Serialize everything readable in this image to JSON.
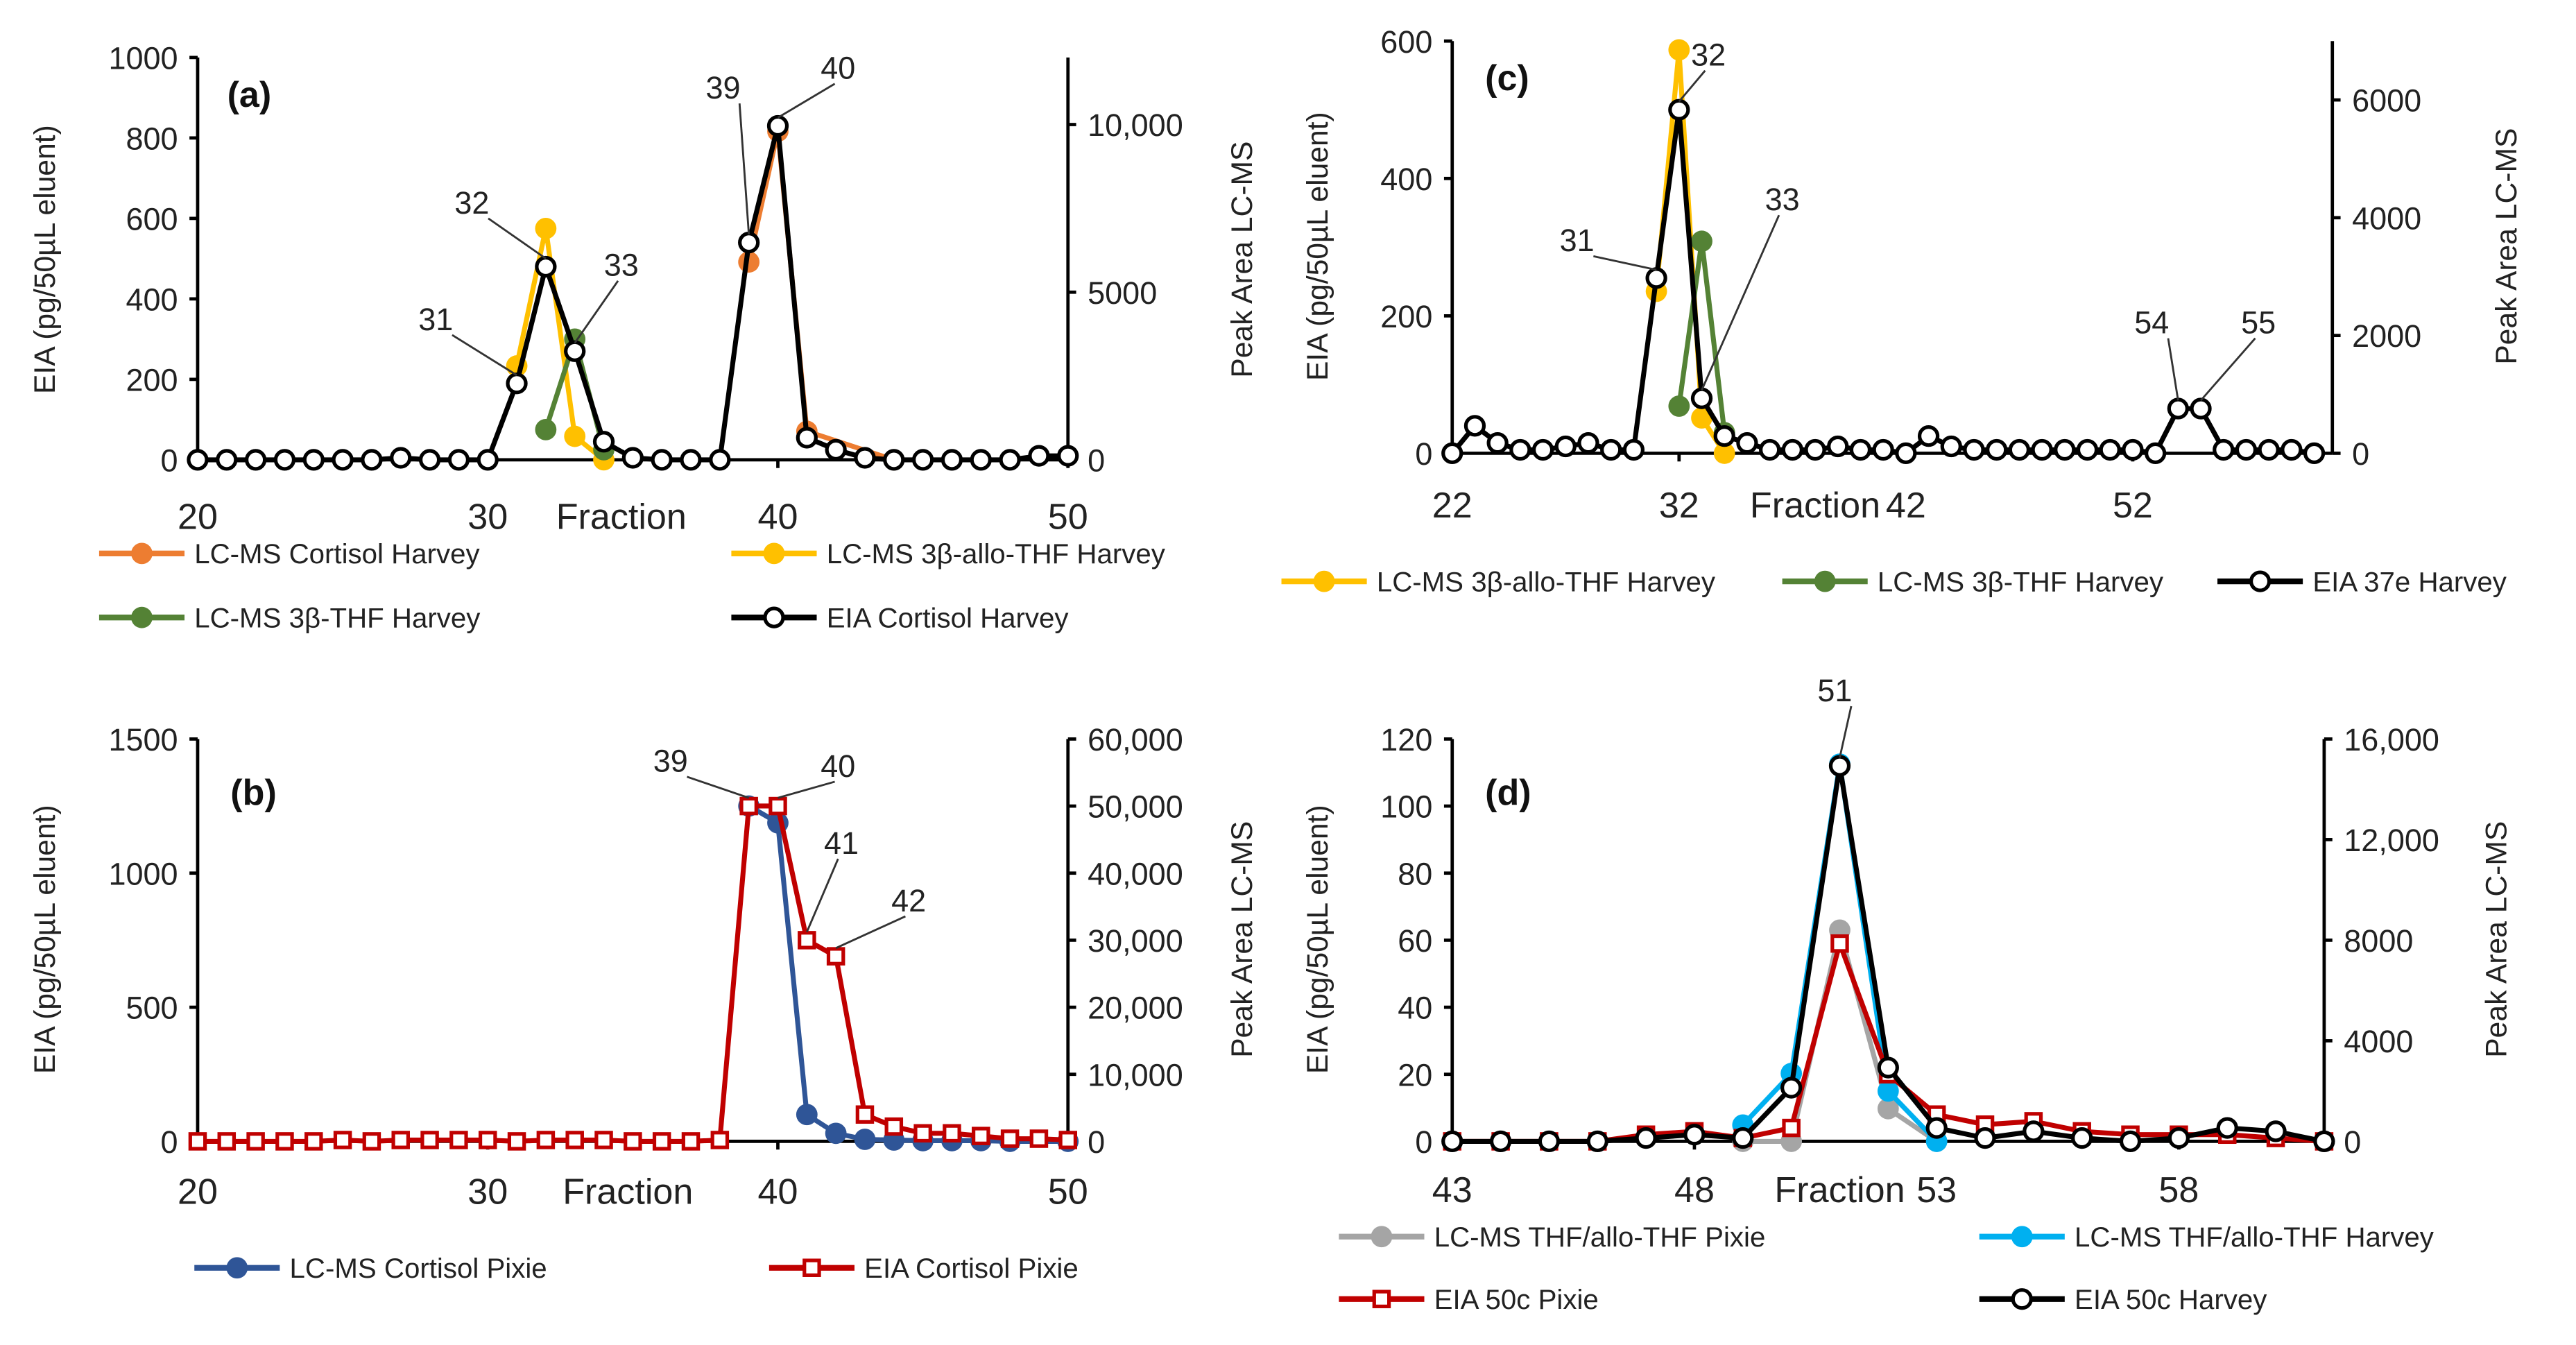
{
  "chart_data": [
    {
      "panel": "(a)",
      "type": "line",
      "xlabel": "Fraction",
      "ylabel": "EIA (pg/50µL eluent)",
      "y2label": "Peak Area LC-MS",
      "xlim": [
        20,
        50
      ],
      "ylim": [
        0,
        1000
      ],
      "y2lim": [
        0,
        12000
      ],
      "xticks": [
        {
          "v": 20,
          "l": "20"
        },
        {
          "v": 30,
          "l": "30"
        },
        {
          "v": 40,
          "l": "40"
        },
        {
          "v": 50,
          "l": "50"
        }
      ],
      "yticks": [
        {
          "v": 0,
          "l": "0"
        },
        {
          "v": 200,
          "l": "200"
        },
        {
          "v": 400,
          "l": "400"
        },
        {
          "v": 600,
          "l": "600"
        },
        {
          "v": 800,
          "l": "800"
        },
        {
          "v": 1000,
          "l": "1000"
        }
      ],
      "y2ticks": [
        {
          "v": 0,
          "l": "0"
        },
        {
          "v": 5000,
          "l": "5000"
        },
        {
          "v": 10000,
          "l": "10,000"
        }
      ],
      "series": [
        {
          "name": "LC-MS Cortisol Harvey",
          "axis": "right",
          "marker": "dot",
          "color": "#ED7D31",
          "x": [
            39,
            40,
            41,
            44
          ],
          "y": [
            5900,
            9800,
            850,
            0
          ]
        },
        {
          "name": "LC-MS 3β-allo-THF Harvey",
          "axis": "right",
          "marker": "dot",
          "color": "#FFC000",
          "x": [
            31,
            32,
            33,
            34
          ],
          "y": [
            2800,
            6900,
            700,
            0
          ]
        },
        {
          "name": "LC-MS 3β-THF Harvey",
          "axis": "right",
          "marker": "dot",
          "color": "#548235",
          "x": [
            32,
            33,
            34
          ],
          "y": [
            900,
            3600,
            300
          ]
        },
        {
          "name": "EIA Cortisol Harvey",
          "axis": "left",
          "marker": "ocircle",
          "color": "#000000",
          "x": [
            20,
            21,
            22,
            23,
            24,
            25,
            26,
            27,
            28,
            29,
            30,
            31,
            32,
            33,
            34,
            35,
            36,
            37,
            38,
            39,
            40,
            41,
            42,
            43,
            44,
            45,
            46,
            47,
            48,
            49,
            50
          ],
          "y": [
            0,
            0,
            0,
            0,
            0,
            0,
            0,
            5,
            0,
            0,
            0,
            190,
            480,
            270,
            45,
            5,
            0,
            0,
            0,
            540,
            830,
            55,
            25,
            5,
            0,
            0,
            0,
            0,
            0,
            10,
            10
          ]
        }
      ],
      "annotations": [
        {
          "text": "31",
          "x": 31
        },
        {
          "text": "32",
          "x": 32
        },
        {
          "text": "33",
          "x": 33
        },
        {
          "text": "39",
          "x": 39
        },
        {
          "text": "40",
          "x": 40
        }
      ],
      "legend": "bottom"
    },
    {
      "panel": "(b)",
      "type": "line",
      "xlabel": "Fraction",
      "ylabel": "EIA (pg/50µL eluent)",
      "y2label": "Peak Area LC-MS",
      "xlim": [
        20,
        50
      ],
      "ylim": [
        0,
        1500
      ],
      "y2lim": [
        0,
        60000
      ],
      "xticks": [
        {
          "v": 20,
          "l": "20"
        },
        {
          "v": 30,
          "l": "30"
        },
        {
          "v": 40,
          "l": "40"
        },
        {
          "v": 50,
          "l": "50"
        }
      ],
      "yticks": [
        {
          "v": 0,
          "l": "0"
        },
        {
          "v": 500,
          "l": "500"
        },
        {
          "v": 1000,
          "l": "1000"
        },
        {
          "v": 1500,
          "l": "1500"
        }
      ],
      "y2ticks": [
        {
          "v": 0,
          "l": "0"
        },
        {
          "v": 10000,
          "l": "10,000"
        },
        {
          "v": 20000,
          "l": "20,000"
        },
        {
          "v": 30000,
          "l": "30,000"
        },
        {
          "v": 40000,
          "l": "40,000"
        },
        {
          "v": 50000,
          "l": "50,000"
        },
        {
          "v": 60000,
          "l": "60,000"
        }
      ],
      "series": [
        {
          "name": "LC-MS Cortisol Pixie",
          "axis": "right",
          "marker": "dot",
          "color": "#2F5597",
          "x": [
            39,
            40,
            41,
            42,
            43,
            44,
            45,
            46,
            47,
            48,
            50
          ],
          "y": [
            50000,
            47500,
            4000,
            1200,
            300,
            200,
            100,
            100,
            100,
            0,
            0
          ]
        },
        {
          "name": "EIA Cortisol Pixie",
          "axis": "left",
          "marker": "osquare",
          "color": "#C00000",
          "x": [
            20,
            21,
            22,
            23,
            24,
            25,
            26,
            27,
            28,
            29,
            30,
            31,
            32,
            33,
            34,
            35,
            36,
            37,
            38,
            39,
            40,
            41,
            42,
            43,
            44,
            45,
            46,
            47,
            48,
            49,
            50
          ],
          "y": [
            0,
            0,
            0,
            0,
            0,
            5,
            0,
            5,
            5,
            5,
            5,
            0,
            5,
            5,
            5,
            0,
            0,
            0,
            5,
            1250,
            1250,
            750,
            690,
            100,
            55,
            30,
            30,
            20,
            10,
            10,
            5
          ]
        }
      ],
      "annotations": [
        {
          "text": "39",
          "x": 39
        },
        {
          "text": "40",
          "x": 40
        },
        {
          "text": "41",
          "x": 41
        },
        {
          "text": "42",
          "x": 42
        }
      ],
      "legend": "bottom"
    },
    {
      "panel": "(c)",
      "type": "line",
      "xlabel": "Fraction",
      "ylabel": "EIA (pg/50µL eluent)",
      "y2label": "Peak Area LC-MS",
      "xlim": [
        22,
        60.8
      ],
      "ylim": [
        0,
        600
      ],
      "y2lim": [
        0,
        7000
      ],
      "xticks": [
        {
          "v": 22,
          "l": "22"
        },
        {
          "v": 32,
          "l": "32"
        },
        {
          "v": 42,
          "l": "42"
        },
        {
          "v": 52,
          "l": "52"
        }
      ],
      "yticks": [
        {
          "v": 0,
          "l": "0"
        },
        {
          "v": 200,
          "l": "200"
        },
        {
          "v": 400,
          "l": "400"
        },
        {
          "v": 600,
          "l": "600"
        }
      ],
      "y2ticks": [
        {
          "v": 0,
          "l": "0"
        },
        {
          "v": 2000,
          "l": "2000"
        },
        {
          "v": 4000,
          "l": "4000"
        },
        {
          "v": 6000,
          "l": "6000"
        }
      ],
      "series": [
        {
          "name": "LC-MS 3β-allo-THF Harvey",
          "axis": "right",
          "marker": "dot",
          "color": "#FFC000",
          "x": [
            31,
            32,
            33,
            34
          ],
          "y": [
            2750,
            6850,
            600,
            0
          ]
        },
        {
          "name": "LC-MS 3β-THF Harvey",
          "axis": "right",
          "marker": "dot",
          "color": "#548235",
          "x": [
            32,
            33,
            34
          ],
          "y": [
            800,
            3600,
            350
          ]
        },
        {
          "name": "EIA 37e Harvey",
          "axis": "left",
          "marker": "ocircle",
          "color": "#000000",
          "x": [
            22,
            23,
            24,
            25,
            26,
            27,
            28,
            29,
            30,
            31,
            32,
            33,
            34,
            35,
            36,
            37,
            38,
            39,
            40,
            41,
            42,
            43,
            44,
            45,
            46,
            47,
            48,
            49,
            50,
            51,
            52,
            53,
            54,
            55,
            56,
            57,
            58,
            59,
            60
          ],
          "y": [
            0,
            40,
            15,
            5,
            5,
            10,
            15,
            5,
            5,
            255,
            500,
            80,
            25,
            15,
            5,
            5,
            5,
            10,
            5,
            5,
            0,
            25,
            10,
            5,
            5,
            5,
            5,
            5,
            5,
            5,
            5,
            0,
            65,
            65,
            5,
            5,
            5,
            5,
            0
          ]
        }
      ],
      "annotations": [
        {
          "text": "31",
          "x": 31
        },
        {
          "text": "32",
          "x": 32
        },
        {
          "text": "33",
          "x": 33
        },
        {
          "text": "54",
          "x": 54
        },
        {
          "text": "55",
          "x": 55
        }
      ],
      "legend": "bottom"
    },
    {
      "panel": "(d)",
      "type": "line",
      "xlabel": "Fraction",
      "ylabel": "EIA (pg/50µL eluent)",
      "y2label": "Peak Area LC-MS",
      "xlim": [
        43,
        61
      ],
      "ylim": [
        0,
        120
      ],
      "y2lim": [
        0,
        16000
      ],
      "xticks": [
        {
          "v": 43,
          "l": "43"
        },
        {
          "v": 48,
          "l": "48"
        },
        {
          "v": 53,
          "l": "53"
        },
        {
          "v": 58,
          "l": "58"
        }
      ],
      "yticks": [
        {
          "v": 0,
          "l": "0"
        },
        {
          "v": 20,
          "l": "20"
        },
        {
          "v": 40,
          "l": "40"
        },
        {
          "v": 60,
          "l": "60"
        },
        {
          "v": 80,
          "l": "80"
        },
        {
          "v": 100,
          "l": "100"
        },
        {
          "v": 120,
          "l": "120"
        }
      ],
      "y2ticks": [
        {
          "v": 0,
          "l": "0"
        },
        {
          "v": 4000,
          "l": "4000"
        },
        {
          "v": 8000,
          "l": "8000"
        },
        {
          "v": 12000,
          "l": "12,000"
        },
        {
          "v": 16000,
          "l": "16,000"
        }
      ],
      "series": [
        {
          "name": "LC-MS THF/allo-THF Pixie",
          "axis": "right",
          "marker": "dot",
          "color": "#A5A5A5",
          "x": [
            49,
            50,
            51,
            52,
            53
          ],
          "y": [
            0,
            0,
            8400,
            1300,
            0
          ]
        },
        {
          "name": "LC-MS THF/allo-THF Harvey",
          "axis": "right",
          "marker": "dot",
          "color": "#00B0F0",
          "x": [
            49,
            50,
            51,
            52,
            53
          ],
          "y": [
            650,
            2700,
            15000,
            2000,
            0
          ]
        },
        {
          "name": "EIA 50c Pixie",
          "axis": "left",
          "marker": "osquare",
          "color": "#C00000",
          "x": [
            43,
            44,
            45,
            46,
            47,
            48,
            49,
            50,
            51,
            52,
            53,
            54,
            55,
            56,
            57,
            58,
            59,
            60,
            61
          ],
          "y": [
            0,
            0,
            0,
            0,
            2,
            3,
            1,
            4,
            59,
            20,
            8,
            5,
            6,
            3,
            2,
            2,
            2,
            1,
            0
          ]
        },
        {
          "name": "EIA 50c Harvey",
          "axis": "left",
          "marker": "ocircle",
          "color": "#000000",
          "x": [
            43,
            44,
            45,
            46,
            47,
            48,
            49,
            50,
            51,
            52,
            53,
            54,
            55,
            56,
            57,
            58,
            59,
            60,
            61
          ],
          "y": [
            0,
            0,
            0,
            0,
            1,
            2,
            1,
            16,
            112,
            22,
            4,
            1,
            3,
            1,
            0,
            1,
            4,
            3,
            0
          ]
        }
      ],
      "annotations": [
        {
          "text": "51",
          "x": 51
        }
      ],
      "legend": "bottom"
    }
  ]
}
